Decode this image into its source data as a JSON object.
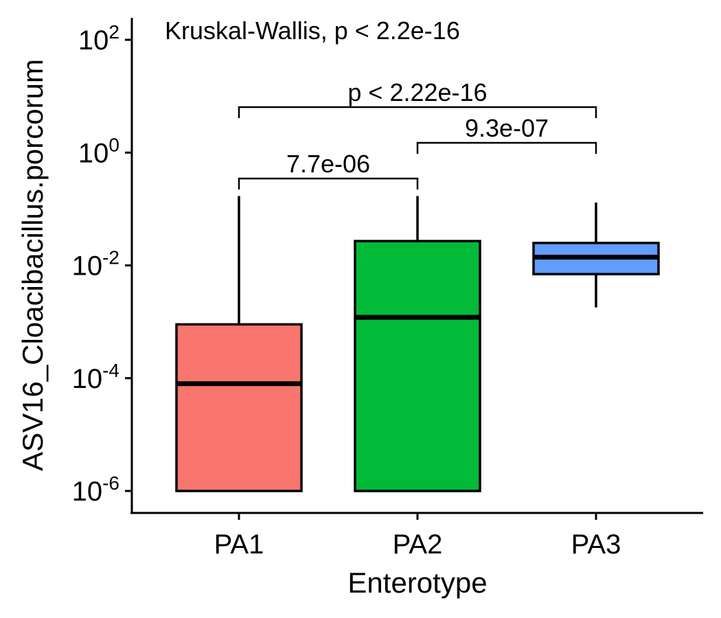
{
  "chart_data": {
    "type": "boxplot",
    "annotation": "Kruskal-Wallis, p < 2.2e-16",
    "xlabel": "Enterotype",
    "ylabel": "ASV16_Cloacibacillus.porcorum",
    "y_scale": "log10",
    "ylim": [
      4e-07,
      200
    ],
    "y_ticks": [
      {
        "value": 1e-06,
        "base": "10",
        "exp": "-6"
      },
      {
        "value": 0.0001,
        "base": "10",
        "exp": "-4"
      },
      {
        "value": 0.01,
        "base": "10",
        "exp": "-2"
      },
      {
        "value": 1,
        "base": "10",
        "exp": "0"
      },
      {
        "value": 100,
        "base": "10",
        "exp": "2"
      }
    ],
    "categories": [
      "PA1",
      "PA2",
      "PA3"
    ],
    "boxes": [
      {
        "category": "PA1",
        "color": "#F8766D",
        "whisker_low": 1e-06,
        "q1": 1e-06,
        "median": 8e-05,
        "q3": 0.0009,
        "whisker_high": 0.17
      },
      {
        "category": "PA2",
        "color": "#00BA38",
        "whisker_low": 1e-06,
        "q1": 1e-06,
        "median": 0.0012,
        "q3": 0.027,
        "whisker_high": 0.17
      },
      {
        "category": "PA3",
        "color": "#619CFF",
        "whisker_low": 0.0018,
        "q1": 0.007,
        "median": 0.014,
        "q3": 0.025,
        "whisker_high": 0.13
      }
    ],
    "comparisons": [
      {
        "from": "PA1",
        "to": "PA2",
        "label": "7.7e-06"
      },
      {
        "from": "PA2",
        "to": "PA3",
        "label": "9.3e-07"
      },
      {
        "from": "PA1",
        "to": "PA3",
        "label": "p < 2.22e-16"
      }
    ]
  }
}
